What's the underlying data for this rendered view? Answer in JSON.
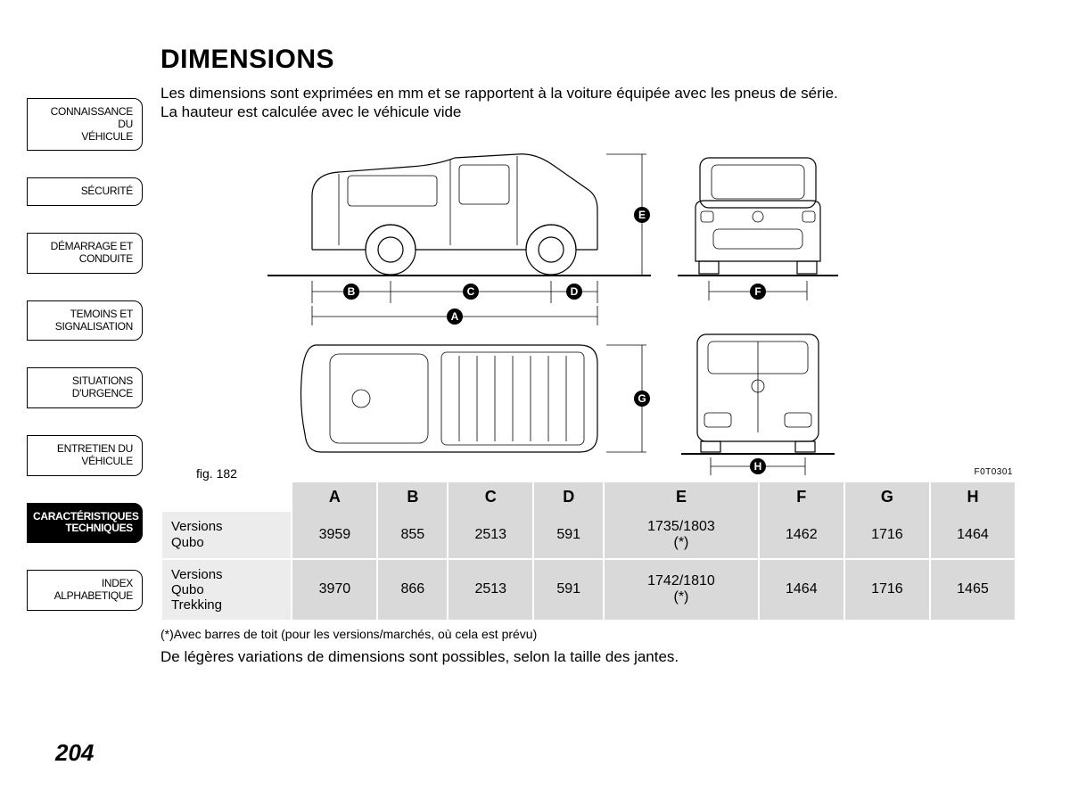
{
  "sidebar": {
    "items": [
      {
        "label": "CONNAISSANCE DU\nVÉHICULE",
        "active": false
      },
      {
        "label": "SÉCURITÉ",
        "active": false
      },
      {
        "label": "DÉMARRAGE ET\nCONDUITE",
        "active": false
      },
      {
        "label": "TEMOINS ET\nSIGNALISATION",
        "active": false
      },
      {
        "label": "SITUATIONS\nD'URGENCE",
        "active": false
      },
      {
        "label": "ENTRETIEN DU\nVÉHICULE",
        "active": false
      },
      {
        "label": "CARACTÉRISTIQUES\nTECHNIQUES",
        "active": true
      },
      {
        "label": "INDEX\nALPHABETIQUE",
        "active": false
      }
    ]
  },
  "title": "DIMENSIONS",
  "intro_line1": "Les dimensions sont exprimées en mm et se rapportent à la voiture équipée avec les pneus de série.",
  "intro_line2": "La hauteur est calculée avec le véhicule vide",
  "figure": {
    "caption": "fig. 182",
    "code": "F0T0301",
    "labels": [
      "A",
      "B",
      "C",
      "D",
      "E",
      "F",
      "G",
      "H"
    ]
  },
  "table": {
    "columns": [
      "A",
      "B",
      "C",
      "D",
      "E",
      "F",
      "G",
      "H"
    ],
    "rows": [
      {
        "label": "Versions\nQubo",
        "values": [
          "3959",
          "855",
          "2513",
          "591",
          "1735/1803\n(*)",
          "1462",
          "1716",
          "1464"
        ]
      },
      {
        "label": "Versions\nQubo\nTrekking",
        "values": [
          "3970",
          "866",
          "2513",
          "591",
          "1742/1810\n(*)",
          "1464",
          "1716",
          "1465"
        ]
      }
    ]
  },
  "footnote": "(*)Avec barres de toit (pour les versions/marchés, où cela est prévu)",
  "closing": "De légères variations de dimensions sont possibles, selon la taille des jantes.",
  "page_number": "204",
  "colors": {
    "header_bg": "#d9d9d9",
    "cell_bg": "#d9d9d9",
    "rowlabel_bg": "#ececec",
    "text": "#000000"
  }
}
